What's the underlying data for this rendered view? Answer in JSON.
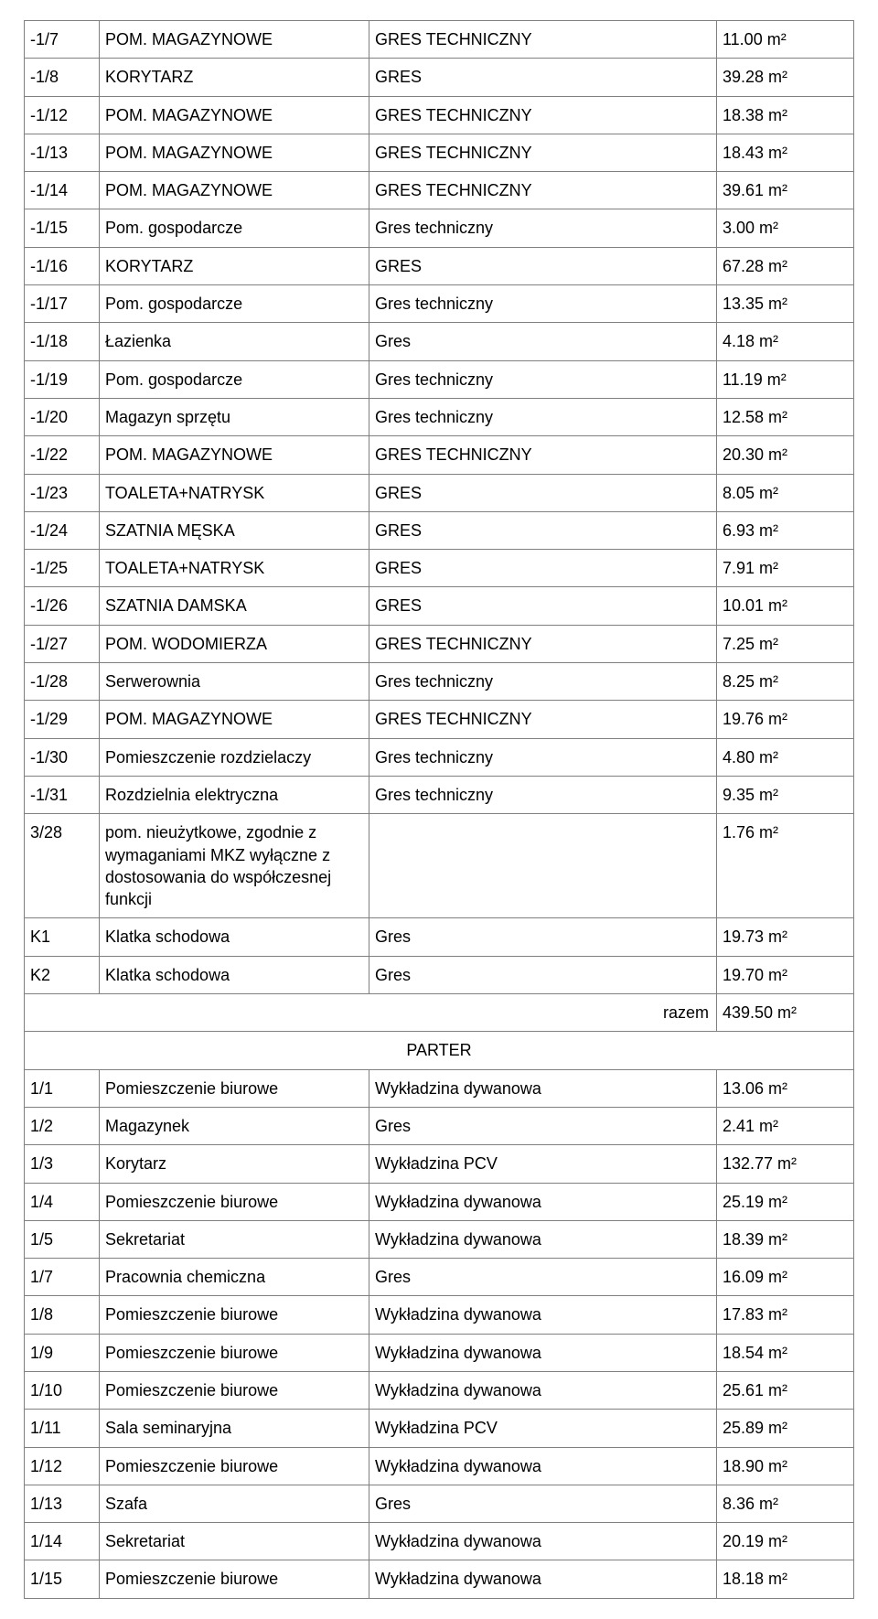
{
  "rows": [
    {
      "type": "row",
      "id": "-1/7",
      "name": "POM. MAGAZYNOWE",
      "mat": "GRES TECHNICZNY",
      "area": "11.00 m²"
    },
    {
      "type": "row",
      "id": "-1/8",
      "name": "KORYTARZ",
      "mat": "GRES",
      "area": "39.28 m²"
    },
    {
      "type": "row",
      "id": "-1/12",
      "name": "POM. MAGAZYNOWE",
      "mat": "GRES TECHNICZNY",
      "area": "18.38 m²"
    },
    {
      "type": "row",
      "id": "-1/13",
      "name": "POM. MAGAZYNOWE",
      "mat": "GRES TECHNICZNY",
      "area": "18.43 m²"
    },
    {
      "type": "row",
      "id": "-1/14",
      "name": "POM. MAGAZYNOWE",
      "mat": "GRES TECHNICZNY",
      "area": "39.61 m²"
    },
    {
      "type": "row",
      "id": "-1/15",
      "name": "Pom. gospodarcze",
      "mat": "Gres techniczny",
      "area": "3.00 m²"
    },
    {
      "type": "row",
      "id": "-1/16",
      "name": "KORYTARZ",
      "mat": "GRES",
      "area": "67.28 m²"
    },
    {
      "type": "row",
      "id": "-1/17",
      "name": "Pom. gospodarcze",
      "mat": "Gres techniczny",
      "area": "13.35 m²"
    },
    {
      "type": "row",
      "id": "-1/18",
      "name": "Łazienka",
      "mat": "Gres",
      "area": "4.18 m²"
    },
    {
      "type": "row",
      "id": "-1/19",
      "name": "Pom. gospodarcze",
      "mat": "Gres techniczny",
      "area": "11.19 m²"
    },
    {
      "type": "row",
      "id": "-1/20",
      "name": "Magazyn sprzętu",
      "mat": "Gres techniczny",
      "area": "12.58 m²"
    },
    {
      "type": "row",
      "id": "-1/22",
      "name": "POM. MAGAZYNOWE",
      "mat": "GRES TECHNICZNY",
      "area": "20.30 m²"
    },
    {
      "type": "row",
      "id": "-1/23",
      "name": "TOALETA+NATRYSK",
      "mat": "GRES",
      "area": "8.05 m²"
    },
    {
      "type": "row",
      "id": "-1/24",
      "name": "SZATNIA MĘSKA",
      "mat": "GRES",
      "area": "6.93 m²"
    },
    {
      "type": "row",
      "id": "-1/25",
      "name": "TOALETA+NATRYSK",
      "mat": "GRES",
      "area": "7.91 m²"
    },
    {
      "type": "row",
      "id": "-1/26",
      "name": "SZATNIA DAMSKA",
      "mat": "GRES",
      "area": "10.01 m²"
    },
    {
      "type": "row",
      "id": "-1/27",
      "name": "POM. WODOMIERZA",
      "mat": "GRES TECHNICZNY",
      "area": "7.25 m²"
    },
    {
      "type": "row",
      "id": "-1/28",
      "name": "Serwerownia",
      "mat": "Gres techniczny",
      "area": "8.25 m²"
    },
    {
      "type": "row",
      "id": "-1/29",
      "name": "POM. MAGAZYNOWE",
      "mat": "GRES TECHNICZNY",
      "area": "19.76 m²"
    },
    {
      "type": "row",
      "id": "-1/30",
      "name": "Pomieszczenie rozdzielaczy",
      "mat": "Gres techniczny",
      "area": "4.80 m²"
    },
    {
      "type": "row",
      "id": "-1/31",
      "name": "Rozdzielnia elektryczna",
      "mat": "Gres techniczny",
      "area": "9.35 m²"
    },
    {
      "type": "row",
      "id": "3/28",
      "name": "pom. nieużytkowe, zgodnie z wymaganiami MKZ wyłączne z dostosowania do współczesnej funkcji",
      "mat": "",
      "area": "1.76 m²"
    },
    {
      "type": "row",
      "id": "K1",
      "name": "Klatka schodowa",
      "mat": "Gres",
      "area": "19.73 m²"
    },
    {
      "type": "row",
      "id": "K2",
      "name": "Klatka schodowa",
      "mat": "Gres",
      "area": "19.70 m²"
    },
    {
      "type": "total",
      "label": "razem",
      "area": "439.50 m²"
    },
    {
      "type": "section",
      "label": "PARTER"
    },
    {
      "type": "row",
      "id": "1/1",
      "name": "Pomieszczenie biurowe",
      "mat": "Wykładzina dywanowa",
      "area": "13.06 m²"
    },
    {
      "type": "row",
      "id": "1/2",
      "name": "Magazynek",
      "mat": "Gres",
      "area": "2.41 m²"
    },
    {
      "type": "row",
      "id": "1/3",
      "name": "Korytarz",
      "mat": "Wykładzina PCV",
      "area": "132.77 m²"
    },
    {
      "type": "row",
      "id": "1/4",
      "name": "Pomieszczenie biurowe",
      "mat": "Wykładzina dywanowa",
      "area": "25.19 m²"
    },
    {
      "type": "row",
      "id": "1/5",
      "name": "Sekretariat",
      "mat": "Wykładzina dywanowa",
      "area": "18.39 m²"
    },
    {
      "type": "row",
      "id": "1/7",
      "name": "Pracownia chemiczna",
      "mat": "Gres",
      "area": "16.09 m²"
    },
    {
      "type": "row",
      "id": "1/8",
      "name": "Pomieszczenie biurowe",
      "mat": "Wykładzina dywanowa",
      "area": "17.83 m²"
    },
    {
      "type": "row",
      "id": "1/9",
      "name": "Pomieszczenie biurowe",
      "mat": "Wykładzina dywanowa",
      "area": "18.54 m²"
    },
    {
      "type": "row",
      "id": "1/10",
      "name": "Pomieszczenie biurowe",
      "mat": "Wykładzina dywanowa",
      "area": "25.61 m²"
    },
    {
      "type": "row",
      "id": "1/11",
      "name": "Sala seminaryjna",
      "mat": "Wykładzina PCV",
      "area": "25.89 m²"
    },
    {
      "type": "row",
      "id": "1/12",
      "name": "Pomieszczenie biurowe",
      "mat": "Wykładzina dywanowa",
      "area": "18.90 m²"
    },
    {
      "type": "row",
      "id": "1/13",
      "name": "Szafa",
      "mat": "Gres",
      "area": "8.36 m²"
    },
    {
      "type": "row",
      "id": "1/14",
      "name": "Sekretariat",
      "mat": "Wykładzina dywanowa",
      "area": "20.19 m²"
    },
    {
      "type": "row",
      "id": "1/15",
      "name": "Pomieszczenie biurowe",
      "mat": "Wykładzina dywanowa",
      "area": "18.18 m²"
    }
  ]
}
